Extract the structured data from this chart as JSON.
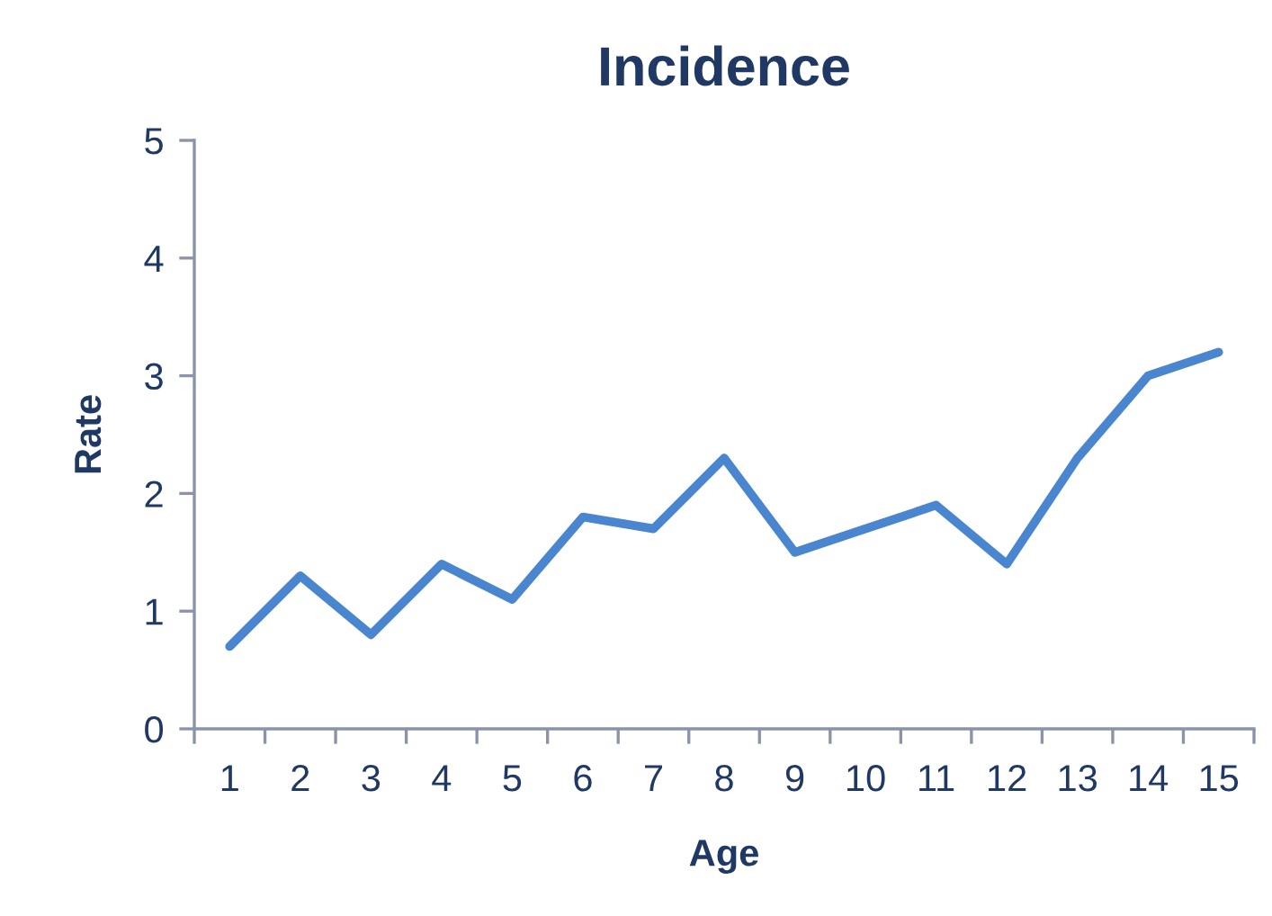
{
  "chart_data": {
    "type": "line",
    "title": "Incidence",
    "xlabel": "Age",
    "ylabel": "Rate",
    "categories": [
      "1",
      "2",
      "3",
      "4",
      "5",
      "6",
      "7",
      "8",
      "9",
      "10",
      "11",
      "12",
      "13",
      "14",
      "15"
    ],
    "series": [
      {
        "color": "#4a86d0",
        "values": [
          0.7,
          1.3,
          0.8,
          1.4,
          1.1,
          1.8,
          1.7,
          2.3,
          1.5,
          1.7,
          1.9,
          1.4,
          2.3,
          3.0,
          3.2
        ]
      }
    ],
    "ylim": [
      0,
      5
    ],
    "yticks": [
      0,
      1,
      2,
      3,
      4,
      5
    ],
    "grid": false,
    "marker": "none",
    "line_style": "solid"
  }
}
